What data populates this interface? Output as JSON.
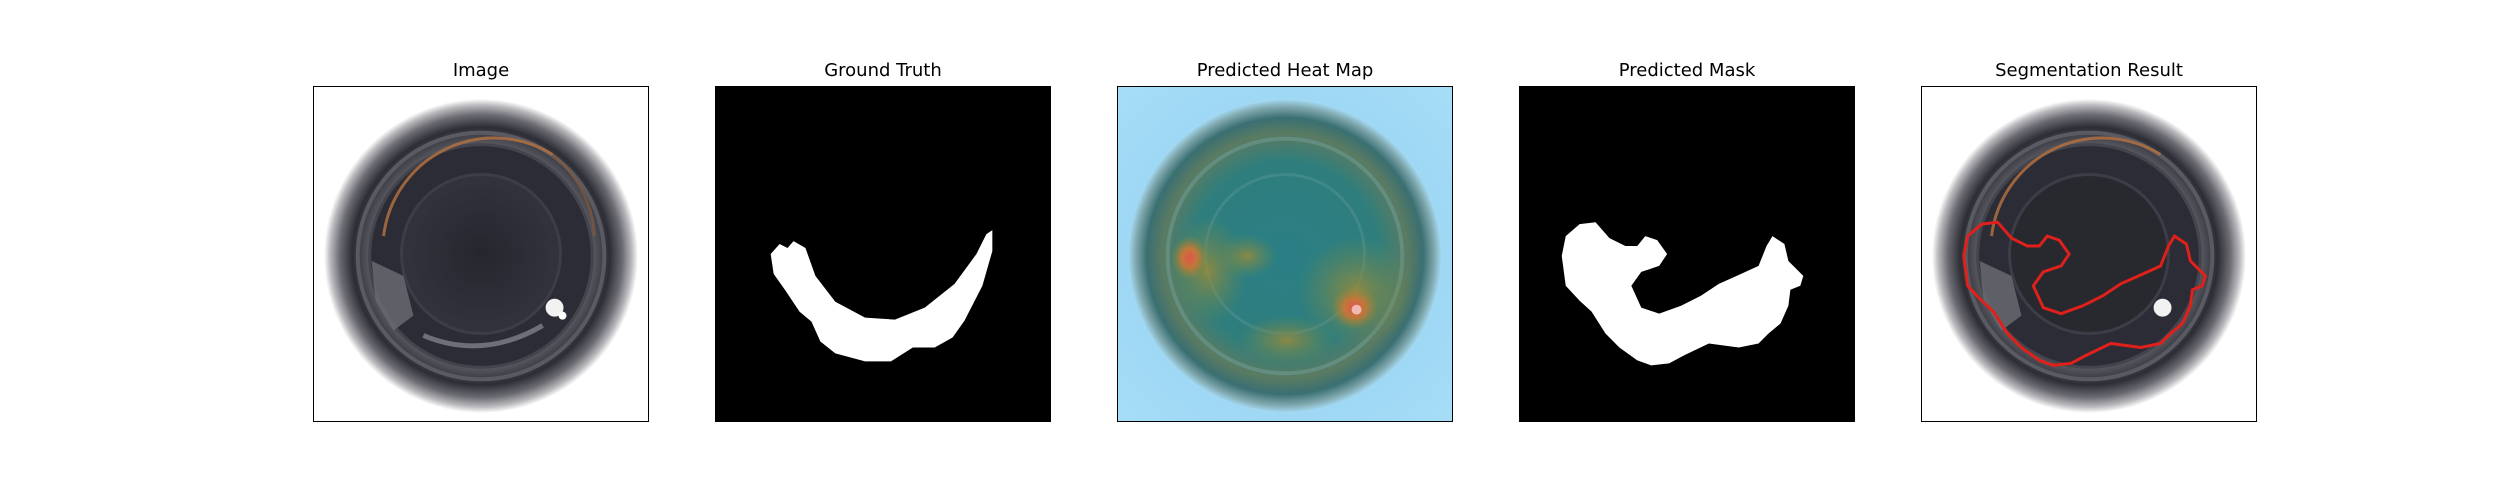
{
  "figure": {
    "panels": [
      {
        "id": "image",
        "title": "Image"
      },
      {
        "id": "ground-truth",
        "title": "Ground Truth"
      },
      {
        "id": "heat-map",
        "title": "Predicted Heat Map"
      },
      {
        "id": "predicted-mask",
        "title": "Predicted Mask"
      },
      {
        "id": "segmentation",
        "title": "Segmentation Result"
      }
    ]
  },
  "colors": {
    "background": "#ffffff",
    "mask_background": "#000000",
    "mask_foreground": "#ffffff",
    "contour": "#e0201a",
    "heatmap_cold": "#8fd0f2",
    "heatmap_hot": "#c0392b"
  }
}
